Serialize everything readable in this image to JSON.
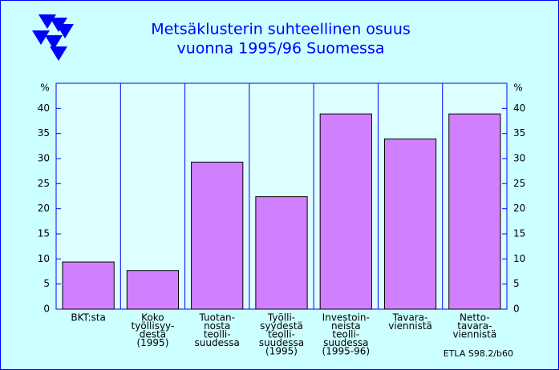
{
  "chart_data": {
    "type": "bar",
    "title": [
      "Metsäklusterin suhteellinen osuus",
      "vuonna 1995/96 Suomessa"
    ],
    "y_label": "%",
    "y2_label": "%",
    "categories": [
      [
        "BKT:sta"
      ],
      [
        "Koko",
        "työllisyy-",
        "destä",
        "(1995)"
      ],
      [
        "Tuotan-",
        "nosta",
        "teolli-",
        "suudessa"
      ],
      [
        "Työlli-",
        "syydestä",
        "teolli-",
        "suudessa",
        "(1995)"
      ],
      [
        "Investoin-",
        "neista",
        "teolli-",
        "suudessa",
        "(1995-96)"
      ],
      [
        "Tavara-",
        "viennistä"
      ],
      [
        "Netto-",
        "tavara-",
        "viennistä"
      ]
    ],
    "values": [
      9.4,
      7.7,
      29.3,
      22.4,
      38.9,
      33.9,
      38.9
    ],
    "color": "#d080ff",
    "ylim": [
      0,
      45
    ],
    "yticks": [
      0,
      5,
      10,
      15,
      20,
      25,
      30,
      35,
      40
    ],
    "source": "ETLA S98.2/b60"
  }
}
